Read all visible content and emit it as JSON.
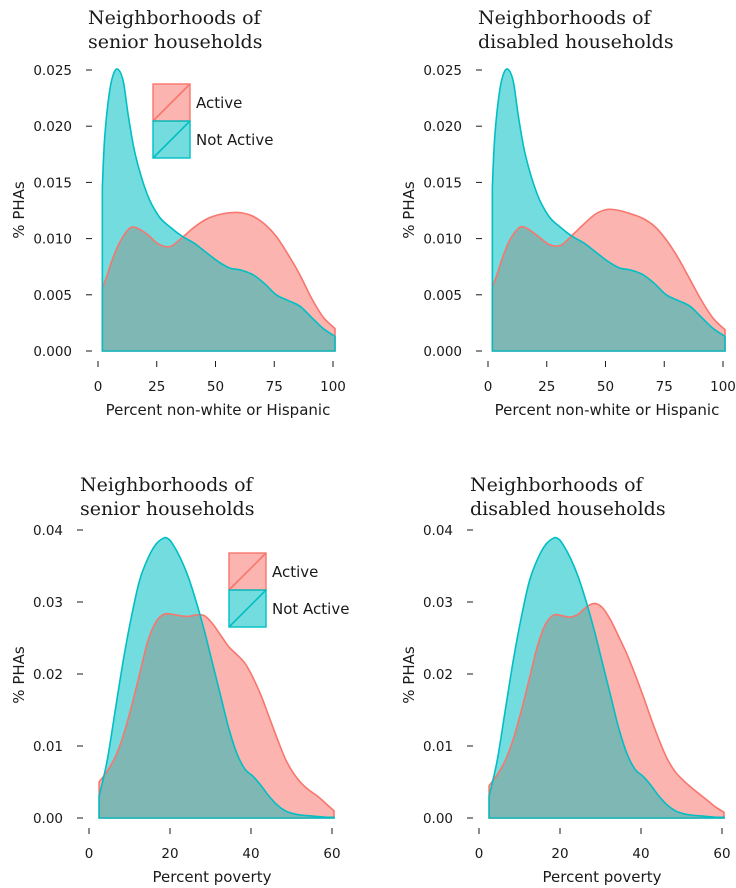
{
  "colors": {
    "active_fill": "#F8766D",
    "active_line": "#F8766D",
    "not_active_fill": "#00BFC4",
    "not_active_line": "#00BFC4",
    "overlap": "#7FB7B5",
    "text": "#1a1a1a"
  },
  "legend": {
    "items": [
      "Active",
      "Not Active"
    ]
  },
  "chart_data": [
    {
      "type": "area",
      "title": [
        "Neighborhoods of",
        "senior households"
      ],
      "xlabel": "Percent non-white or Hispanic",
      "ylabel": "% PHAs",
      "xlim": [
        0,
        100
      ],
      "ylim": [
        0,
        0.025
      ],
      "xticks": [
        0,
        25,
        50,
        75,
        100
      ],
      "xtick_labels": [
        "0",
        "25",
        "50",
        "75",
        "100"
      ],
      "yticks": [
        0,
        0.005,
        0.01,
        0.015,
        0.02,
        0.025
      ],
      "ytick_labels": [
        "0.000",
        "0.005",
        "0.010",
        "0.015",
        "0.020",
        "0.025"
      ],
      "legend": true,
      "series": [
        {
          "name": "Active",
          "x": [
            1,
            3,
            5,
            8,
            12,
            15,
            20,
            25,
            30,
            35,
            40,
            45,
            50,
            55,
            60,
            65,
            70,
            75,
            80,
            85,
            90,
            95,
            100
          ],
          "y": [
            0.0056,
            0.0067,
            0.008,
            0.0095,
            0.0108,
            0.011,
            0.0104,
            0.0095,
            0.0093,
            0.0101,
            0.011,
            0.0117,
            0.0121,
            0.0123,
            0.0123,
            0.012,
            0.0113,
            0.0102,
            0.0086,
            0.0068,
            0.0047,
            0.003,
            0.002
          ]
        },
        {
          "name": "Not Active",
          "x": [
            1,
            2,
            4,
            6,
            8,
            10,
            12,
            15,
            20,
            25,
            30,
            35,
            40,
            45,
            50,
            55,
            60,
            65,
            70,
            75,
            80,
            85,
            90,
            95,
            100
          ],
          "y": [
            0.0146,
            0.019,
            0.023,
            0.0248,
            0.025,
            0.0239,
            0.021,
            0.0175,
            0.014,
            0.012,
            0.011,
            0.0102,
            0.0096,
            0.0088,
            0.008,
            0.0074,
            0.0072,
            0.0068,
            0.006,
            0.005,
            0.0045,
            0.004,
            0.003,
            0.002,
            0.0013
          ]
        }
      ]
    },
    {
      "type": "area",
      "title": [
        "Neighborhoods of",
        "disabled households"
      ],
      "xlabel": "Percent non-white or Hispanic",
      "ylabel": "% PHAs",
      "xlim": [
        0,
        100
      ],
      "ylim": [
        0,
        0.025
      ],
      "xticks": [
        0,
        25,
        50,
        75,
        100
      ],
      "xtick_labels": [
        "0",
        "25",
        "50",
        "75",
        "100"
      ],
      "yticks": [
        0,
        0.005,
        0.01,
        0.015,
        0.02,
        0.025
      ],
      "ytick_labels": [
        "0.000",
        "0.005",
        "0.010",
        "0.015",
        "0.020",
        "0.025"
      ],
      "legend": false,
      "series": [
        {
          "name": "Active",
          "x": [
            1,
            3,
            5,
            8,
            12,
            15,
            20,
            25,
            30,
            35,
            40,
            45,
            50,
            55,
            60,
            65,
            70,
            75,
            80,
            85,
            90,
            95,
            100
          ],
          "y": [
            0.0057,
            0.0068,
            0.0081,
            0.0097,
            0.0109,
            0.011,
            0.0103,
            0.0095,
            0.0094,
            0.0103,
            0.0113,
            0.0122,
            0.0126,
            0.0125,
            0.0122,
            0.0118,
            0.0111,
            0.0099,
            0.0083,
            0.0064,
            0.0045,
            0.0029,
            0.0019
          ]
        },
        {
          "name": "Not Active",
          "x": [
            1,
            2,
            4,
            6,
            8,
            10,
            12,
            15,
            20,
            25,
            30,
            35,
            40,
            45,
            50,
            55,
            60,
            65,
            70,
            75,
            80,
            85,
            90,
            95,
            100
          ],
          "y": [
            0.0146,
            0.019,
            0.023,
            0.0248,
            0.025,
            0.0239,
            0.021,
            0.0175,
            0.014,
            0.012,
            0.011,
            0.0102,
            0.0096,
            0.0088,
            0.008,
            0.0074,
            0.0072,
            0.0068,
            0.006,
            0.005,
            0.0045,
            0.004,
            0.003,
            0.002,
            0.0013
          ]
        }
      ]
    },
    {
      "type": "area",
      "title": [
        "Neighborhoods of",
        "senior households"
      ],
      "xlabel": "Percent poverty",
      "ylabel": "% PHAs",
      "xlim": [
        0,
        60
      ],
      "ylim": [
        0,
        0.04
      ],
      "xticks": [
        0,
        20,
        40,
        60
      ],
      "xtick_labels": [
        "0",
        "20",
        "40",
        "60"
      ],
      "yticks": [
        0,
        0.01,
        0.02,
        0.03,
        0.04
      ],
      "ytick_labels": [
        "0.00",
        "0.01",
        "0.02",
        "0.03",
        "0.04"
      ],
      "legend": true,
      "series": [
        {
          "name": "Active",
          "x": [
            2,
            4,
            6,
            8,
            10,
            12,
            14,
            16,
            18,
            20,
            22,
            24,
            26,
            28,
            30,
            32,
            34,
            36,
            38,
            40,
            42,
            44,
            46,
            48,
            50,
            52,
            54,
            56,
            58,
            60
          ],
          "y": [
            0.005,
            0.0065,
            0.0085,
            0.0115,
            0.0155,
            0.02,
            0.0245,
            0.0272,
            0.0283,
            0.0283,
            0.0281,
            0.028,
            0.0282,
            0.0281,
            0.027,
            0.0254,
            0.0238,
            0.0227,
            0.0215,
            0.0195,
            0.017,
            0.014,
            0.011,
            0.0082,
            0.0062,
            0.0048,
            0.0038,
            0.003,
            0.002,
            0.001
          ]
        },
        {
          "name": "Not Active",
          "x": [
            2,
            4,
            6,
            8,
            10,
            12,
            14,
            16,
            18,
            19,
            20,
            22,
            24,
            26,
            28,
            30,
            32,
            34,
            36,
            38,
            40,
            42,
            44,
            46,
            48,
            50,
            52,
            54,
            56,
            58,
            60
          ],
          "y": [
            0.003,
            0.008,
            0.015,
            0.022,
            0.028,
            0.033,
            0.036,
            0.038,
            0.0389,
            0.0388,
            0.0382,
            0.0362,
            0.0335,
            0.03,
            0.026,
            0.0215,
            0.017,
            0.0125,
            0.009,
            0.0068,
            0.0058,
            0.0045,
            0.003,
            0.0018,
            0.001,
            0.0006,
            0.0004,
            0.0003,
            0.0002,
            0.0001,
            0.0001
          ]
        }
      ]
    },
    {
      "type": "area",
      "title": [
        "Neighborhoods of",
        "disabled households"
      ],
      "xlabel": "Percent poverty",
      "ylabel": "% PHAs",
      "xlim": [
        0,
        60
      ],
      "ylim": [
        0,
        0.04
      ],
      "xticks": [
        0,
        20,
        40,
        60
      ],
      "xtick_labels": [
        "0",
        "20",
        "40",
        "60"
      ],
      "yticks": [
        0,
        0.01,
        0.02,
        0.03,
        0.04
      ],
      "ytick_labels": [
        "0.00",
        "0.01",
        "0.02",
        "0.03",
        "0.04"
      ],
      "legend": false,
      "series": [
        {
          "name": "Active",
          "x": [
            2,
            4,
            6,
            8,
            10,
            12,
            14,
            16,
            18,
            20,
            22,
            24,
            26,
            28,
            30,
            32,
            34,
            36,
            38,
            40,
            42,
            44,
            46,
            48,
            50,
            52,
            54,
            56,
            58,
            60
          ],
          "y": [
            0.0045,
            0.006,
            0.008,
            0.011,
            0.015,
            0.0195,
            0.024,
            0.027,
            0.0282,
            0.0281,
            0.0279,
            0.0283,
            0.0293,
            0.0298,
            0.0292,
            0.0275,
            0.0252,
            0.0228,
            0.02,
            0.017,
            0.0138,
            0.0108,
            0.0082,
            0.0064,
            0.0052,
            0.0042,
            0.0033,
            0.0024,
            0.0015,
            0.0008
          ]
        },
        {
          "name": "Not Active",
          "x": [
            2,
            4,
            6,
            8,
            10,
            12,
            14,
            16,
            18,
            19,
            20,
            22,
            24,
            26,
            28,
            30,
            32,
            34,
            36,
            38,
            40,
            42,
            44,
            46,
            48,
            50,
            52,
            54,
            56,
            58,
            60
          ],
          "y": [
            0.003,
            0.008,
            0.015,
            0.022,
            0.028,
            0.033,
            0.036,
            0.038,
            0.0389,
            0.0388,
            0.0382,
            0.0362,
            0.0335,
            0.03,
            0.026,
            0.0215,
            0.017,
            0.0125,
            0.009,
            0.0068,
            0.0058,
            0.0045,
            0.003,
            0.0018,
            0.001,
            0.0006,
            0.0004,
            0.0003,
            0.0002,
            0.0001,
            0.0001
          ]
        }
      ]
    }
  ]
}
